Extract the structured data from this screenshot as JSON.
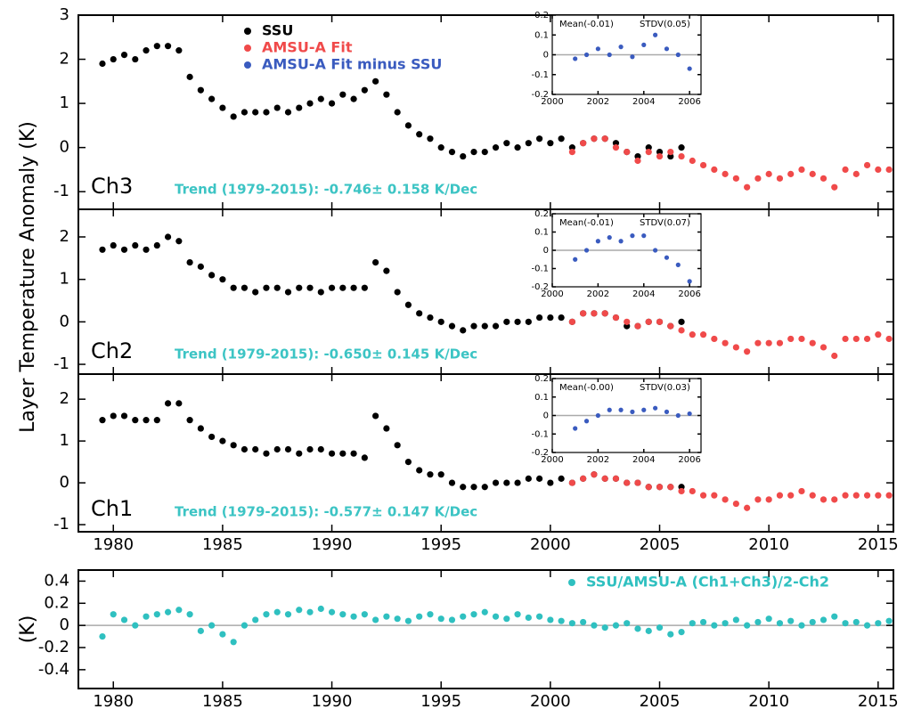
{
  "figure_ylabel": "Layer Temperature Anomaly (K)",
  "chart_data": [
    {
      "type": "scatter",
      "label": "Ch3",
      "annotation": "Trend (1979-2015): -0.746± 0.158 K/Dec",
      "legend": true,
      "show_xtick_labels": false,
      "xlim": [
        1978.4,
        2015.7
      ],
      "xticks": [
        1980,
        1985,
        1990,
        1995,
        2000,
        2005,
        2010,
        2015
      ],
      "ylim": [
        -1.4,
        3
      ],
      "yticks": [
        -1,
        0,
        1,
        2,
        3
      ],
      "series": [
        {
          "name": "SSU",
          "color": "#000000",
          "x": [
            1979.5,
            1980,
            1980.5,
            1981,
            1981.5,
            1982,
            1982.5,
            1983,
            1983.5,
            1984,
            1984.5,
            1985,
            1985.5,
            1986,
            1986.5,
            1987,
            1987.5,
            1988,
            1988.5,
            1989,
            1989.5,
            1990,
            1990.5,
            1991,
            1991.5,
            1992,
            1992.5,
            1993,
            1993.5,
            1994,
            1994.5,
            1995,
            1995.5,
            1996,
            1996.5,
            1997,
            1997.5,
            1998,
            1998.5,
            1999,
            1999.5,
            2000,
            2000.5,
            2001,
            2001.5,
            2002,
            2002.5,
            2003,
            2003.5,
            2004,
            2004.5,
            2005,
            2005.5,
            2006
          ],
          "values": [
            1.9,
            2.0,
            2.1,
            2.0,
            2.2,
            2.3,
            2.3,
            2.2,
            1.6,
            1.3,
            1.1,
            0.9,
            0.7,
            0.8,
            0.8,
            0.8,
            0.9,
            0.8,
            0.9,
            1.0,
            1.1,
            1.0,
            1.2,
            1.1,
            1.3,
            1.5,
            1.2,
            0.8,
            0.5,
            0.3,
            0.2,
            0.0,
            -0.1,
            -0.2,
            -0.1,
            -0.1,
            0.0,
            0.1,
            0.0,
            0.1,
            0.2,
            0.1,
            0.2,
            0.0,
            0.1,
            0.2,
            0.2,
            0.1,
            -0.1,
            -0.2,
            0.0,
            -0.1,
            -0.2,
            0.0
          ]
        },
        {
          "name": "AMSU-A Fit",
          "color": "#f04a4a",
          "x": [
            2001,
            2001.5,
            2002,
            2002.5,
            2003,
            2003.5,
            2004,
            2004.5,
            2005,
            2005.5,
            2006,
            2006.5,
            2007,
            2007.5,
            2008,
            2008.5,
            2009,
            2009.5,
            2010,
            2010.5,
            2011,
            2011.5,
            2012,
            2012.5,
            2013,
            2013.5,
            2014,
            2014.5,
            2015,
            2015.5
          ],
          "values": [
            -0.1,
            0.1,
            0.2,
            0.2,
            0.0,
            -0.1,
            -0.3,
            -0.1,
            -0.2,
            -0.1,
            -0.2,
            -0.3,
            -0.4,
            -0.5,
            -0.6,
            -0.7,
            -0.9,
            -0.7,
            -0.6,
            -0.7,
            -0.6,
            -0.5,
            -0.6,
            -0.7,
            -0.9,
            -0.5,
            -0.6,
            -0.4,
            -0.5,
            -0.5
          ]
        }
      ],
      "inset": {
        "type": "scatter",
        "annotations": [
          "Mean(-0.01)",
          "STDV(0.05)"
        ],
        "zero_line": true,
        "xlim": [
          2000,
          2006.5
        ],
        "xticks": [
          2000,
          2002,
          2004,
          2006
        ],
        "ylim": [
          -0.2,
          0.2
        ],
        "yticks": [
          -0.2,
          -0.1,
          0,
          0.1,
          0.2
        ],
        "series": [
          {
            "name": "AMSU-A Fit minus SSU",
            "color": "#3a5bbf",
            "x": [
              2001,
              2001.5,
              2002,
              2002.5,
              2003,
              2003.5,
              2004,
              2004.5,
              2005,
              2005.5,
              2006
            ],
            "values": [
              -0.02,
              0.0,
              0.03,
              0.0,
              0.04,
              -0.01,
              0.05,
              0.1,
              0.03,
              0.0,
              -0.07
            ]
          }
        ]
      }
    },
    {
      "type": "scatter",
      "label": "Ch2",
      "annotation": "Trend (1979-2015): -0.650± 0.145 K/Dec",
      "show_xtick_labels": false,
      "xlim": [
        1978.4,
        2015.7
      ],
      "xticks": [
        1980,
        1985,
        1990,
        1995,
        2000,
        2005,
        2010,
        2015
      ],
      "ylim": [
        -1.23,
        2.65
      ],
      "yticks": [
        -1,
        0,
        1,
        2
      ],
      "series": [
        {
          "name": "SSU",
          "color": "#000000",
          "x": [
            1979.5,
            1980,
            1980.5,
            1981,
            1981.5,
            1982,
            1982.5,
            1983,
            1983.5,
            1984,
            1984.5,
            1985,
            1985.5,
            1986,
            1986.5,
            1987,
            1987.5,
            1988,
            1988.5,
            1989,
            1989.5,
            1990,
            1990.5,
            1991,
            1991.5,
            1992,
            1992.5,
            1993,
            1993.5,
            1994,
            1994.5,
            1995,
            1995.5,
            1996,
            1996.5,
            1997,
            1997.5,
            1998,
            1998.5,
            1999,
            1999.5,
            2000,
            2000.5,
            2001,
            2001.5,
            2002,
            2002.5,
            2003,
            2003.5,
            2004,
            2004.5,
            2005,
            2005.5,
            2006
          ],
          "values": [
            1.7,
            1.8,
            1.7,
            1.8,
            1.7,
            1.8,
            2.0,
            1.9,
            1.4,
            1.3,
            1.1,
            1.0,
            0.8,
            0.8,
            0.7,
            0.8,
            0.8,
            0.7,
            0.8,
            0.8,
            0.7,
            0.8,
            0.8,
            0.8,
            0.8,
            1.4,
            1.2,
            0.7,
            0.4,
            0.2,
            0.1,
            0.0,
            -0.1,
            -0.2,
            -0.1,
            -0.1,
            -0.1,
            0.0,
            0.0,
            0.0,
            0.1,
            0.1,
            0.1,
            0.0,
            0.2,
            0.2,
            0.2,
            0.1,
            -0.1,
            -0.1,
            0.0,
            0.0,
            -0.1,
            0.0
          ]
        },
        {
          "name": "AMSU-A Fit",
          "color": "#f04a4a",
          "x": [
            2001,
            2001.5,
            2002,
            2002.5,
            2003,
            2003.5,
            2004,
            2004.5,
            2005,
            2005.5,
            2006,
            2006.5,
            2007,
            2007.5,
            2008,
            2008.5,
            2009,
            2009.5,
            2010,
            2010.5,
            2011,
            2011.5,
            2012,
            2012.5,
            2013,
            2013.5,
            2014,
            2014.5,
            2015,
            2015.5
          ],
          "values": [
            0.0,
            0.2,
            0.2,
            0.2,
            0.1,
            0.0,
            -0.1,
            0.0,
            0.0,
            -0.1,
            -0.2,
            -0.3,
            -0.3,
            -0.4,
            -0.5,
            -0.6,
            -0.7,
            -0.5,
            -0.5,
            -0.5,
            -0.4,
            -0.4,
            -0.5,
            -0.6,
            -0.8,
            -0.4,
            -0.4,
            -0.4,
            -0.3,
            -0.4
          ]
        }
      ],
      "inset": {
        "type": "scatter",
        "annotations": [
          "Mean(-0.01)",
          "STDV(0.07)"
        ],
        "zero_line": true,
        "xlim": [
          2000,
          2006.5
        ],
        "xticks": [
          2000,
          2002,
          2004,
          2006
        ],
        "ylim": [
          -0.2,
          0.2
        ],
        "yticks": [
          -0.2,
          -0.1,
          0,
          0.1,
          0.2
        ],
        "series": [
          {
            "name": "AMSU-A Fit minus SSU",
            "color": "#3a5bbf",
            "x": [
              2001,
              2001.5,
              2002,
              2002.5,
              2003,
              2003.5,
              2004,
              2004.5,
              2005,
              2005.5,
              2006
            ],
            "values": [
              -0.05,
              0.0,
              0.05,
              0.07,
              0.05,
              0.08,
              0.08,
              0.0,
              -0.04,
              -0.08,
              -0.17
            ]
          }
        ]
      }
    },
    {
      "type": "scatter",
      "label": "Ch1",
      "annotation": "Trend (1979-2015): -0.577± 0.147 K/Dec",
      "xlim": [
        1978.4,
        2015.7
      ],
      "xticks": [
        1980,
        1985,
        1990,
        1995,
        2000,
        2005,
        2010,
        2015
      ],
      "ylim": [
        -1.17,
        2.6
      ],
      "yticks": [
        -1,
        0,
        1,
        2
      ],
      "series": [
        {
          "name": "SSU",
          "color": "#000000",
          "x": [
            1979.5,
            1980,
            1980.5,
            1981,
            1981.5,
            1982,
            1982.5,
            1983,
            1983.5,
            1984,
            1984.5,
            1985,
            1985.5,
            1986,
            1986.5,
            1987,
            1987.5,
            1988,
            1988.5,
            1989,
            1989.5,
            1990,
            1990.5,
            1991,
            1991.5,
            1992,
            1992.5,
            1993,
            1993.5,
            1994,
            1994.5,
            1995,
            1995.5,
            1996,
            1996.5,
            1997,
            1997.5,
            1998,
            1998.5,
            1999,
            1999.5,
            2000,
            2000.5,
            2001,
            2001.5,
            2002,
            2002.5,
            2003,
            2003.5,
            2004,
            2004.5,
            2005,
            2005.5,
            2006
          ],
          "values": [
            1.5,
            1.6,
            1.6,
            1.5,
            1.5,
            1.5,
            1.9,
            1.9,
            1.5,
            1.3,
            1.1,
            1.0,
            0.9,
            0.8,
            0.8,
            0.7,
            0.8,
            0.8,
            0.7,
            0.8,
            0.8,
            0.7,
            0.7,
            0.7,
            0.6,
            1.6,
            1.3,
            0.9,
            0.5,
            0.3,
            0.2,
            0.2,
            0.0,
            -0.1,
            -0.1,
            -0.1,
            0.0,
            0.0,
            0.0,
            0.1,
            0.1,
            0.0,
            0.1,
            0.0,
            0.1,
            0.2,
            0.1,
            0.1,
            0.0,
            0.0,
            -0.1,
            -0.1,
            -0.1,
            -0.1
          ]
        },
        {
          "name": "AMSU-A Fit",
          "color": "#f04a4a",
          "x": [
            2001,
            2001.5,
            2002,
            2002.5,
            2003,
            2003.5,
            2004,
            2004.5,
            2005,
            2005.5,
            2006,
            2006.5,
            2007,
            2007.5,
            2008,
            2008.5,
            2009,
            2009.5,
            2010,
            2010.5,
            2011,
            2011.5,
            2012,
            2012.5,
            2013,
            2013.5,
            2014,
            2014.5,
            2015,
            2015.5
          ],
          "values": [
            0.0,
            0.1,
            0.2,
            0.1,
            0.1,
            0.0,
            0.0,
            -0.1,
            -0.1,
            -0.1,
            -0.2,
            -0.2,
            -0.3,
            -0.3,
            -0.4,
            -0.5,
            -0.6,
            -0.4,
            -0.4,
            -0.3,
            -0.3,
            -0.2,
            -0.3,
            -0.4,
            -0.4,
            -0.3,
            -0.3,
            -0.3,
            -0.3,
            -0.3
          ]
        }
      ],
      "inset": {
        "type": "scatter",
        "annotations": [
          "Mean(-0.00)",
          "STDV(0.03)"
        ],
        "zero_line": true,
        "xlim": [
          2000,
          2006.5
        ],
        "xticks": [
          2000,
          2002,
          2004,
          2006
        ],
        "ylim": [
          -0.2,
          0.2
        ],
        "yticks": [
          -0.2,
          -0.1,
          0,
          0.1,
          0.2
        ],
        "series": [
          {
            "name": "AMSU-A Fit minus SSU",
            "color": "#3a5bbf",
            "x": [
              2001,
              2001.5,
              2002,
              2002.5,
              2003,
              2003.5,
              2004,
              2004.5,
              2005,
              2005.5,
              2006
            ],
            "values": [
              -0.07,
              -0.03,
              0.0,
              0.03,
              0.03,
              0.02,
              0.03,
              0.04,
              0.02,
              0.0,
              0.01
            ]
          }
        ]
      }
    },
    {
      "type": "scatter",
      "ylabel": "(K)",
      "legend": true,
      "zero_line": true,
      "xlim": [
        1978.4,
        2015.7
      ],
      "xticks": [
        1980,
        1985,
        1990,
        1995,
        2000,
        2005,
        2010,
        2015
      ],
      "ylim": [
        -0.57,
        0.5
      ],
      "yticks": [
        -0.4,
        -0.2,
        0,
        0.2,
        0.4
      ],
      "series": [
        {
          "name": "SSU/AMSU-A (Ch1+Ch3)/2-Ch2",
          "color": "#2fc0c0",
          "x": [
            1979.5,
            1980,
            1980.5,
            1981,
            1981.5,
            1982,
            1982.5,
            1983,
            1983.5,
            1984,
            1984.5,
            1985,
            1985.5,
            1986,
            1986.5,
            1987,
            1987.5,
            1988,
            1988.5,
            1989,
            1989.5,
            1990,
            1990.5,
            1991,
            1991.5,
            1992,
            1992.5,
            1993,
            1993.5,
            1994,
            1994.5,
            1995,
            1995.5,
            1996,
            1996.5,
            1997,
            1997.5,
            1998,
            1998.5,
            1999,
            1999.5,
            2000,
            2000.5,
            2001,
            2001.5,
            2002,
            2002.5,
            2003,
            2003.5,
            2004,
            2004.5,
            2005,
            2005.5,
            2006,
            2006.5,
            2007,
            2007.5,
            2008,
            2008.5,
            2009,
            2009.5,
            2010,
            2010.5,
            2011,
            2011.5,
            2012,
            2012.5,
            2013,
            2013.5,
            2014,
            2014.5,
            2015,
            2015.5
          ],
          "values": [
            -0.1,
            0.1,
            0.05,
            0.0,
            0.08,
            0.1,
            0.12,
            0.14,
            0.1,
            -0.05,
            0.0,
            -0.08,
            -0.15,
            0.0,
            0.05,
            0.1,
            0.12,
            0.1,
            0.14,
            0.12,
            0.15,
            0.12,
            0.1,
            0.08,
            0.1,
            0.05,
            0.08,
            0.06,
            0.04,
            0.08,
            0.1,
            0.06,
            0.05,
            0.08,
            0.1,
            0.12,
            0.08,
            0.06,
            0.1,
            0.07,
            0.08,
            0.05,
            0.04,
            0.02,
            0.03,
            0.0,
            -0.02,
            0.0,
            0.02,
            -0.03,
            -0.05,
            -0.02,
            -0.08,
            -0.06,
            0.02,
            0.03,
            0.0,
            0.02,
            0.05,
            0.0,
            0.03,
            0.06,
            0.02,
            0.04,
            0.0,
            0.03,
            0.05,
            0.08,
            0.02,
            0.03,
            0.0,
            0.02,
            0.04
          ]
        }
      ]
    }
  ]
}
